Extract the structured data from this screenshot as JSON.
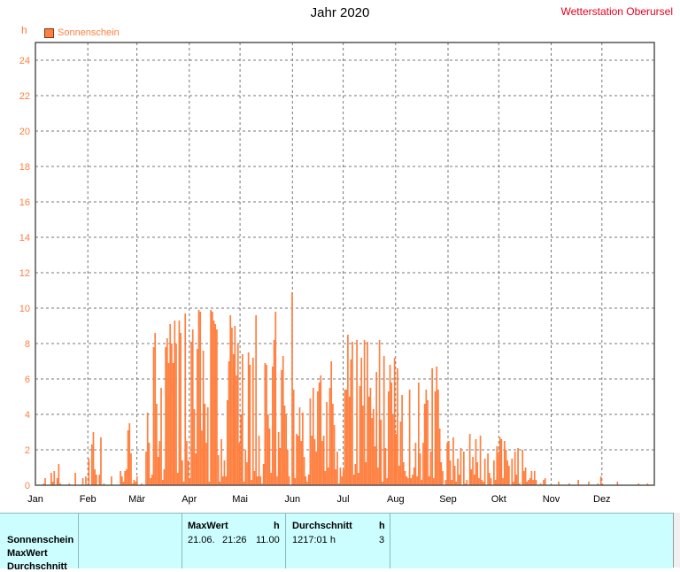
{
  "title": "Jahr 2020",
  "station": "Wetterstation Oberursel",
  "colors": {
    "bar": "#ff7f3f",
    "axis_text": "#ff7f3f",
    "station": "#e8001c",
    "table_bg": "#ccfdff"
  },
  "chart_data": {
    "type": "bar",
    "ylabel": "h",
    "ylim": [
      0,
      25
    ],
    "yticks": [
      0,
      2,
      4,
      6,
      8,
      10,
      12,
      14,
      16,
      18,
      20,
      22,
      24
    ],
    "months": [
      "Jan",
      "Feb",
      "Mär",
      "Apr",
      "Mai",
      "Jun",
      "Jul",
      "Aug",
      "Sep",
      "Okt",
      "Nov",
      "Dez"
    ],
    "grid": true,
    "legend_position": "top-left",
    "series": [
      {
        "name": "Sonnenschein",
        "values": [
          0,
          0,
          0,
          0,
          0,
          0.1,
          0.4,
          0,
          0,
          0,
          0.7,
          0.2,
          0.8,
          0,
          0.4,
          1.2,
          0.1,
          0,
          0,
          0,
          0,
          0,
          0.1,
          0,
          0,
          0,
          0.7,
          0,
          0,
          0,
          0,
          0.4,
          0,
          0.5,
          0,
          1.5,
          0,
          2.3,
          3.0,
          0.9,
          0.6,
          0,
          0.6,
          2.7,
          0,
          0.1,
          0,
          0,
          0,
          0,
          0.5,
          0,
          0,
          0,
          0,
          0,
          0.8,
          0.5,
          0.2,
          0.8,
          0.9,
          3.1,
          3.5,
          1.8,
          0.1,
          0.3,
          0.2,
          0.5,
          0,
          0,
          0.1,
          0,
          0,
          1.9,
          4.1,
          2.4,
          0.4,
          0.6,
          7.8,
          8.6,
          4.6,
          1.6,
          2.5,
          5.5,
          0.3,
          0.9,
          7.8,
          8.3,
          6.9,
          9.1,
          8.0,
          6.9,
          9.3,
          8.0,
          0.7,
          9.3,
          8.6,
          1.4,
          0.2,
          9.7,
          2.5,
          1.4,
          0.4,
          8.1,
          8.8,
          4.3,
          1.8,
          7.7,
          9.9,
          9.8,
          3.1,
          7.6,
          4.6,
          2.4,
          4.4,
          0.2,
          9.9,
          9.8,
          9.3,
          9.1,
          8.8,
          1.7,
          0.2,
          2.6,
          0.5,
          1.4,
          0.5,
          4.8,
          7.0,
          9.6,
          8.9,
          7.4,
          9.0,
          6.2,
          8.0,
          2.4,
          4.0,
          7.4,
          0.2,
          2.0,
          1.3,
          7.5,
          6.8,
          0.3,
          7.2,
          0.8,
          9.6,
          0.5,
          2.8,
          0.5,
          0.1,
          1.2,
          6.9,
          6.8,
          4.0,
          3.2,
          0.7,
          6.7,
          8.2,
          9.8,
          0.5,
          3.0,
          2.1,
          6.5,
          7.3,
          4.5,
          4.0,
          2.0,
          0.5,
          0,
          10.9,
          5.4,
          0.4,
          2.9,
          2.8,
          4.4,
          2.5,
          4.1,
          1.6,
          0.5,
          0.2,
          0.6,
          4.9,
          2.8,
          5.5,
          2.6,
          1.9,
          5.3,
          5.8,
          6.2,
          2.5,
          2.8,
          0.8,
          4.7,
          1.0,
          5.5,
          7.0,
          4.6,
          3.4,
          0.9,
          1.9,
          0.1,
          1.0,
          0.5,
          0.9,
          5.4,
          5.4,
          8.5,
          5.0,
          7.1,
          8.1,
          0.6,
          1.2,
          8.2,
          0.7,
          5.6,
          7.2,
          4.5,
          8.2,
          1.3,
          8.1,
          5.0,
          5.5,
          3.8,
          4.3,
          2.2,
          6.4,
          1.0,
          8.2,
          3.7,
          0.2,
          7.3,
          2.1,
          0.4,
          5.3,
          6.8,
          5.8,
          4.0,
          7.2,
          2.9,
          6.6,
          1.1,
          3.6,
          5.1,
          1.3,
          0.8,
          0.5,
          0.4,
          5.4,
          0.4,
          0.6,
          1.0,
          2.4,
          0.5,
          5.8,
          1.8,
          0.3,
          2.4,
          4.6,
          5.4,
          4.8,
          0.5,
          1.9,
          6.6,
          0.4,
          5.3,
          6.7,
          5.4,
          3.2,
          1.3,
          0.8,
          0,
          0.3,
          2.4,
          2.5,
          1.4,
          0.3,
          2.7,
          1.1,
          0.2,
          1.5,
          0.6,
          2.1,
          0,
          1.9,
          0.1,
          0.3,
          0,
          2.9,
          0.9,
          1.6,
          0.6,
          2.6,
          1.3,
          0.4,
          2.8,
          0.3,
          0.2,
          1.5,
          0,
          1.8,
          0.7,
          0.4,
          0,
          1.4,
          0.3,
          2.2,
          1.8,
          2.7,
          2.6,
          0.4,
          2.5,
          2.0,
          1.4,
          1.1,
          0,
          1.5,
          0.2,
          1.9,
          0.6,
          2.1,
          0.1,
          0,
          2.0,
          0.8,
          1.0,
          0.2,
          0.3,
          0.4,
          0.8,
          0.3,
          0.8,
          0.3,
          0,
          0,
          0.1,
          0,
          0.3,
          0.4,
          0,
          0,
          0,
          0,
          0,
          0,
          0,
          0,
          0.2,
          0,
          0,
          0,
          0,
          0,
          0,
          0.1,
          0,
          0,
          0,
          0,
          0,
          0.3,
          0,
          0,
          0,
          0,
          0,
          0,
          0.2,
          0,
          0,
          0,
          0,
          0,
          0.1,
          0,
          0.5,
          0.1,
          0,
          0,
          0,
          0,
          0,
          0,
          0,
          0,
          0,
          0.2,
          0,
          0,
          0,
          0,
          0,
          0,
          0,
          0,
          0,
          0,
          0,
          0,
          0,
          0.1,
          0,
          0,
          0,
          0,
          0,
          0.1,
          0,
          0,
          0,
          0
        ]
      }
    ]
  },
  "table": {
    "row_labels": [
      "Sonnenschein",
      "MaxWert",
      "Durchschnitt"
    ],
    "maxwert": {
      "header": "MaxWert",
      "unit": "h",
      "date": "21.06.",
      "time": "21:26",
      "value": "11.00"
    },
    "durchschnitt": {
      "header": "Durchschnitt",
      "unit": "h",
      "value": "1217:01 h",
      "count": "3"
    }
  }
}
